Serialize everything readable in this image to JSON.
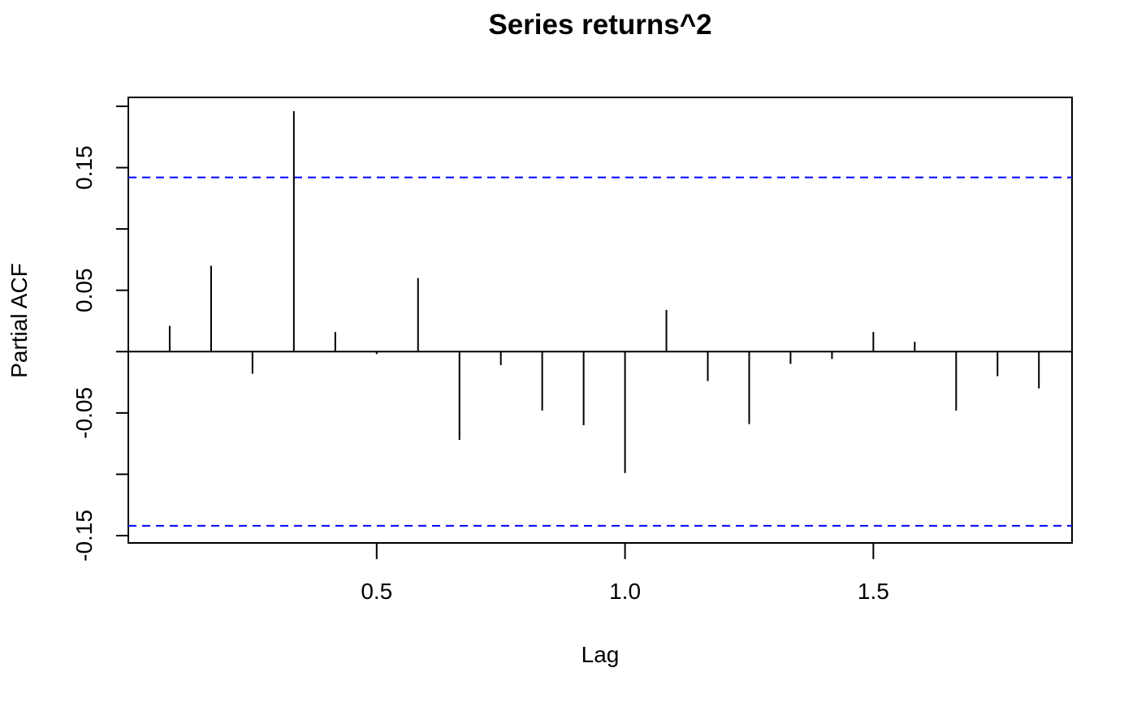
{
  "chart_data": {
    "type": "bar",
    "subtype": "partial-acf-spikes",
    "title": "Series  returns^2",
    "xlabel": "Lag",
    "ylabel": "Partial ACF",
    "xlim": [
      0.0,
      1.9
    ],
    "ylim": [
      -0.152,
      0.2
    ],
    "xticks": [
      0.5,
      1.0,
      1.5
    ],
    "xtick_labels": [
      "0.5",
      "1.0",
      "1.5"
    ],
    "yticks": [
      -0.15,
      -0.1,
      -0.05,
      0.0,
      0.05,
      0.1,
      0.15,
      0.2
    ],
    "ytick_labels": [
      "-0.15",
      "",
      "-0.05",
      "",
      "0.05",
      "",
      "0.15",
      ""
    ],
    "grid": false,
    "x": [
      0.0833,
      0.1667,
      0.25,
      0.3333,
      0.4167,
      0.5,
      0.5833,
      0.6667,
      0.75,
      0.8333,
      0.9167,
      1.0,
      1.0833,
      1.1667,
      1.25,
      1.3333,
      1.4167,
      1.5,
      1.5833,
      1.6667,
      1.75,
      1.8333
    ],
    "values": [
      0.021,
      0.07,
      -0.018,
      0.196,
      0.016,
      -0.002,
      0.06,
      -0.072,
      -0.011,
      -0.048,
      -0.06,
      -0.099,
      0.034,
      -0.024,
      -0.059,
      -0.01,
      -0.006,
      0.016,
      0.008,
      -0.048,
      -0.02,
      -0.03
    ],
    "confidence_bound": 0.142,
    "colors": {
      "spikes": "#000000",
      "bounds": "#0000ff",
      "frame": "#000000"
    }
  }
}
